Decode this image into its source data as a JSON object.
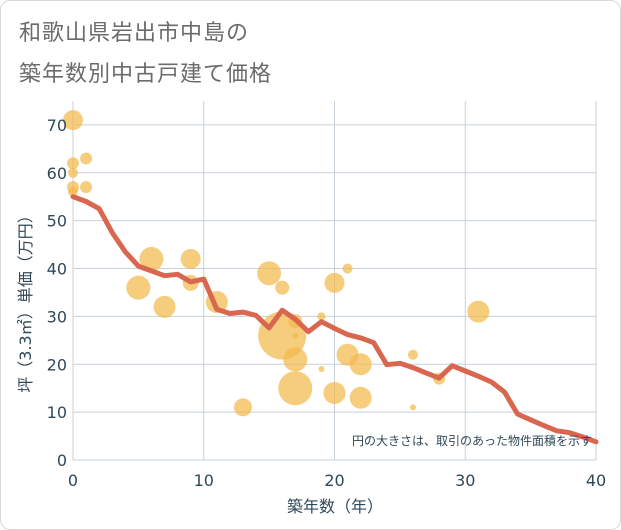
{
  "title": {
    "line1": "和歌山県岩出市中島の",
    "line2": "築年数別中古戸建て価格"
  },
  "colors": {
    "bubble": "#f2b84b",
    "line": "#d9664f",
    "grid": "#c7d0d9",
    "axis_text": "#2f4858"
  },
  "chart_data": {
    "type": "scatter",
    "xlabel": "築年数（年）",
    "ylabel": "坪（3.3㎡）単価（万円）",
    "xlim": [
      0,
      40
    ],
    "ylim": [
      0,
      75
    ],
    "x_ticks": [
      "0",
      "10",
      "20",
      "30",
      "40"
    ],
    "x_tick_values": [
      0,
      10,
      20,
      30,
      40
    ],
    "y_ticks": [
      "0",
      "10",
      "20",
      "30",
      "40",
      "50",
      "60",
      "70"
    ],
    "y_tick_values": [
      0,
      10,
      20,
      30,
      40,
      50,
      60,
      70
    ],
    "note": "円の大きさは、取引のあった物件面積を示す",
    "bubbles": [
      {
        "x": 0,
        "y": 71,
        "r": 10
      },
      {
        "x": 0,
        "y": 62,
        "r": 6
      },
      {
        "x": 0,
        "y": 60,
        "r": 5
      },
      {
        "x": 0,
        "y": 57,
        "r": 6
      },
      {
        "x": 0,
        "y": 56,
        "r": 5
      },
      {
        "x": 1,
        "y": 63,
        "r": 6
      },
      {
        "x": 1,
        "y": 57,
        "r": 6
      },
      {
        "x": 5,
        "y": 36,
        "r": 12
      },
      {
        "x": 6,
        "y": 42,
        "r": 12
      },
      {
        "x": 7,
        "y": 32,
        "r": 11
      },
      {
        "x": 9,
        "y": 42,
        "r": 10
      },
      {
        "x": 9,
        "y": 37,
        "r": 8
      },
      {
        "x": 11,
        "y": 33,
        "r": 11
      },
      {
        "x": 13,
        "y": 11,
        "r": 9
      },
      {
        "x": 15,
        "y": 39,
        "r": 12
      },
      {
        "x": 16,
        "y": 36,
        "r": 7
      },
      {
        "x": 16,
        "y": 26,
        "r": 24
      },
      {
        "x": 17,
        "y": 29,
        "r": 7
      },
      {
        "x": 17,
        "y": 26,
        "r": 3
      },
      {
        "x": 17,
        "y": 21,
        "r": 12
      },
      {
        "x": 17,
        "y": 15,
        "r": 17
      },
      {
        "x": 19,
        "y": 30,
        "r": 4
      },
      {
        "x": 19,
        "y": 19,
        "r": 3
      },
      {
        "x": 20,
        "y": 37,
        "r": 10
      },
      {
        "x": 20,
        "y": 14,
        "r": 11
      },
      {
        "x": 21,
        "y": 40,
        "r": 5
      },
      {
        "x": 21,
        "y": 22,
        "r": 11
      },
      {
        "x": 22,
        "y": 20,
        "r": 11
      },
      {
        "x": 22,
        "y": 13,
        "r": 11
      },
      {
        "x": 26,
        "y": 22,
        "r": 5
      },
      {
        "x": 26,
        "y": 11,
        "r": 3
      },
      {
        "x": 28,
        "y": 17,
        "r": 6
      },
      {
        "x": 31,
        "y": 31,
        "r": 11
      }
    ],
    "series": [
      {
        "name": "average",
        "x": [
          0,
          1,
          2,
          3,
          4,
          5,
          6,
          7,
          8,
          9,
          10,
          11,
          12,
          13,
          14,
          15,
          16,
          17,
          18,
          19,
          20,
          21,
          22,
          23,
          24,
          25,
          26,
          27,
          28,
          29,
          30,
          31,
          32,
          33,
          34,
          35,
          36,
          37,
          38,
          39,
          40
        ],
        "y": [
          55,
          54,
          52.5,
          47.5,
          43.5,
          40.5,
          39.5,
          38.5,
          38.8,
          37.2,
          37.8,
          31.5,
          30.6,
          30.9,
          30.2,
          27.6,
          31.3,
          29.4,
          26.8,
          28.9,
          27.5,
          26.2,
          25.5,
          24.5,
          19.9,
          20.2,
          19.3,
          18.2,
          17.1,
          19.7,
          18.6,
          17.5,
          16.3,
          14.2,
          9.6,
          8.4,
          7.2,
          6.1,
          5.7,
          4.8,
          3.8
        ]
      }
    ]
  }
}
